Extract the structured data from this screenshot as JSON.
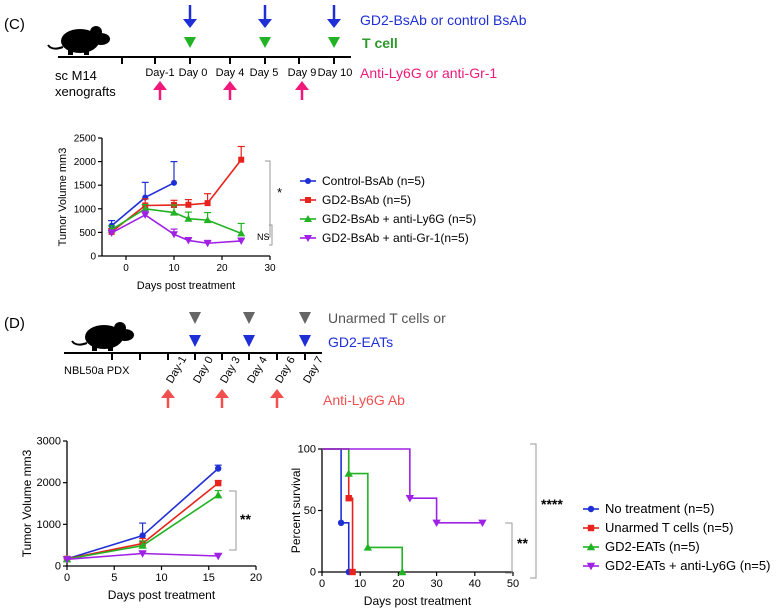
{
  "panel_c": {
    "label": "(C)",
    "timeline": {
      "ticks": [
        "Day-1",
        "Day 0",
        "Day 4",
        "Day 5",
        "Day 9",
        "Day 10"
      ],
      "left_label_lines": [
        "sc M14",
        "xenografts"
      ],
      "down_label": "GD2-BsAb or control BsAb",
      "tcell_label": "T cell",
      "up_label": "Anti-Ly6G or anti-Gr-1"
    },
    "sig_main": "*",
    "sig_ns": "NS"
  },
  "panel_d": {
    "label": "(D)",
    "timeline": {
      "ticks": [
        "Day-1",
        "Day 0",
        "Day 3",
        "Day 4",
        "Day 6",
        "Day 7"
      ],
      "left_label": "NBL50a PDX",
      "grey_label": "Unarmed T cells or",
      "blue_label": "GD2-EATs",
      "up_label": "Anti-Ly6G Ab"
    },
    "sig_tumor": "**",
    "sig_surv_main": "****",
    "sig_surv_sub": "**"
  },
  "colors": {
    "blue": "#1f2fd6",
    "red": "#e8221c",
    "green": "#22b324",
    "purple": "#a020e6",
    "magenta": "#f0197a",
    "coral": "#f24f4f",
    "grey": "#666666",
    "tcell_green": "#2e9a2e"
  },
  "chart_data": [
    {
      "id": "c_tumor",
      "type": "line",
      "xlabel": "Days post treatment",
      "ylabel": "Tumor Volume mm3",
      "xlim": [
        -5,
        30
      ],
      "ylim": [
        0,
        2500
      ],
      "xticks": [
        "0",
        "10",
        "20",
        "30"
      ],
      "yticks": [
        "0",
        "500",
        "1000",
        "1500",
        "2000",
        "2500"
      ],
      "legend_position": "right",
      "series": [
        {
          "name": "Control-BsAb (n=5)",
          "color": "#1f2fd6",
          "marker": "circle",
          "x": [
            -3,
            4,
            10
          ],
          "y": [
            640,
            1240,
            1550
          ],
          "err": [
            110,
            320,
            450
          ]
        },
        {
          "name": "GD2-BsAb (n=5)",
          "color": "#e8221c",
          "marker": "square",
          "x": [
            -3,
            4,
            10,
            13,
            17,
            24
          ],
          "y": [
            510,
            1070,
            1080,
            1085,
            1120,
            2040
          ],
          "err": [
            70,
            140,
            100,
            110,
            200,
            280
          ]
        },
        {
          "name": "GD2-BsAb + anti-Ly6G (n=5)",
          "color": "#22b324",
          "marker": "triangle-up",
          "x": [
            -3,
            4,
            10,
            13,
            17,
            24
          ],
          "y": [
            560,
            1000,
            920,
            790,
            760,
            480
          ],
          "err": [
            80,
            90,
            160,
            140,
            160,
            210
          ]
        },
        {
          "name": "GD2-BsAb + anti-Gr-1(n=5)",
          "color": "#a020e6",
          "marker": "triangle-down",
          "x": [
            -3,
            4,
            10,
            13,
            17,
            24
          ],
          "y": [
            490,
            870,
            460,
            330,
            270,
            320
          ],
          "err": [
            60,
            80,
            110,
            60,
            60,
            60
          ]
        }
      ]
    },
    {
      "id": "d_tumor",
      "type": "line",
      "xlabel": "Days post treatment",
      "ylabel": "Tumor Volume mm3",
      "xlim": [
        0,
        20
      ],
      "ylim": [
        0,
        3000
      ],
      "xticks": [
        "0",
        "5",
        "10",
        "15",
        "20"
      ],
      "yticks": [
        "0",
        "1000",
        "2000",
        "3000"
      ],
      "series": [
        {
          "color": "#1f2fd6",
          "marker": "circle",
          "x": [
            0,
            8,
            16
          ],
          "y": [
            170,
            730,
            2340
          ],
          "err": [
            40,
            300,
            80
          ]
        },
        {
          "color": "#e8221c",
          "marker": "square",
          "x": [
            0,
            8,
            16
          ],
          "y": [
            170,
            540,
            1990
          ],
          "err": [
            40,
            120,
            60
          ]
        },
        {
          "color": "#22b324",
          "marker": "triangle-up",
          "x": [
            0,
            8,
            16
          ],
          "y": [
            165,
            490,
            1700
          ],
          "err": [
            40,
            110,
            110
          ]
        },
        {
          "color": "#a020e6",
          "marker": "triangle-down",
          "x": [
            0,
            8,
            16
          ],
          "y": [
            160,
            300,
            240
          ],
          "err": [
            30,
            40,
            40
          ]
        }
      ]
    },
    {
      "id": "d_survival",
      "type": "line",
      "xlabel": "Days post treatment",
      "ylabel": "Percent survival",
      "xlim": [
        0,
        50
      ],
      "ylim": [
        0,
        100
      ],
      "xticks": [
        "0",
        "10",
        "20",
        "30",
        "40",
        "50"
      ],
      "yticks": [
        "0",
        "50",
        "100"
      ],
      "legend_position": "right",
      "series": [
        {
          "name": "No treatment (n=5)",
          "color": "#1f2fd6",
          "marker": "circle",
          "x": [
            0,
            5,
            7
          ],
          "y": [
            100,
            40,
            0
          ]
        },
        {
          "name": "Unarmed T cells (n=5)",
          "color": "#e8221c",
          "marker": "square",
          "x": [
            0,
            7,
            8
          ],
          "y": [
            100,
            60,
            0
          ]
        },
        {
          "name": "GD2-EATs (n=5)",
          "color": "#22b324",
          "marker": "triangle-up",
          "x": [
            0,
            7,
            12,
            21
          ],
          "y": [
            100,
            80,
            20,
            0
          ]
        },
        {
          "name": "GD2-EATs + anti-Ly6G (n=5)",
          "color": "#a020e6",
          "marker": "triangle-down",
          "x": [
            0,
            23,
            30,
            42
          ],
          "y": [
            100,
            60,
            40,
            40
          ]
        }
      ]
    }
  ]
}
